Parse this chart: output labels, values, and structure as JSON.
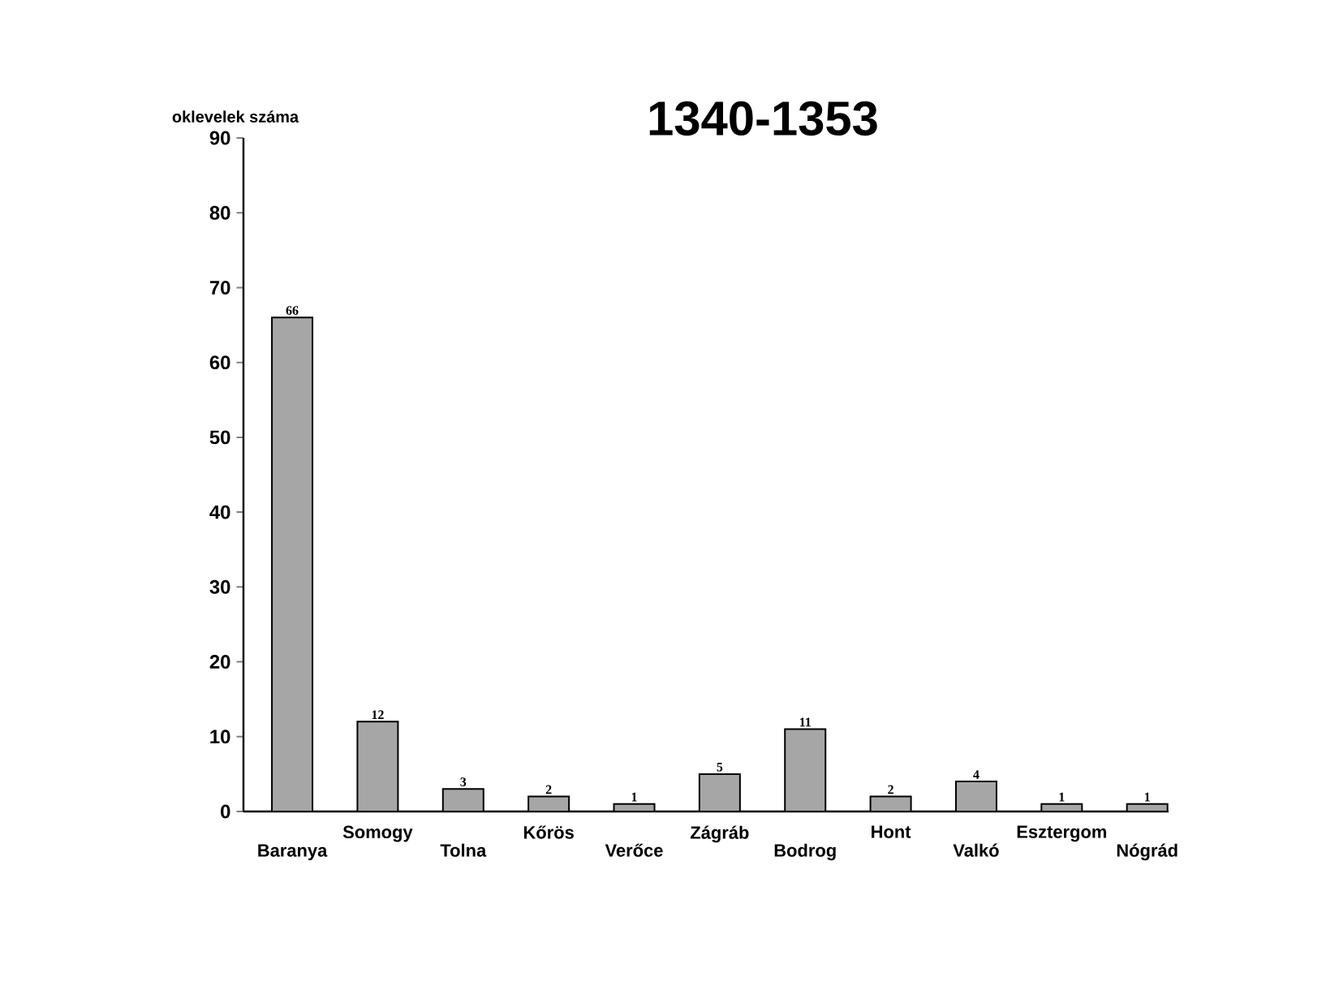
{
  "chart_data": {
    "type": "bar",
    "title": "1340-1353",
    "ylabel": "oklevelek száma",
    "categories": [
      "Baranya",
      "Somogy",
      "Tolna",
      "Kőrös",
      "Verőce",
      "Zágráb",
      "Bodrog",
      "Hont",
      "Valkó",
      "Esztergom",
      "Nógrád"
    ],
    "values": [
      66,
      12,
      3,
      2,
      1,
      5,
      11,
      2,
      4,
      1,
      1
    ],
    "value_labels": [
      "66",
      "12",
      "3",
      "2",
      "1",
      "5",
      "11",
      "2",
      "4",
      "1",
      "1"
    ],
    "color": "#a6a6a6",
    "ylim": [
      0,
      90
    ],
    "yticks": [
      0,
      10,
      20,
      30,
      40,
      50,
      60,
      70,
      80,
      90
    ],
    "grid": false
  }
}
